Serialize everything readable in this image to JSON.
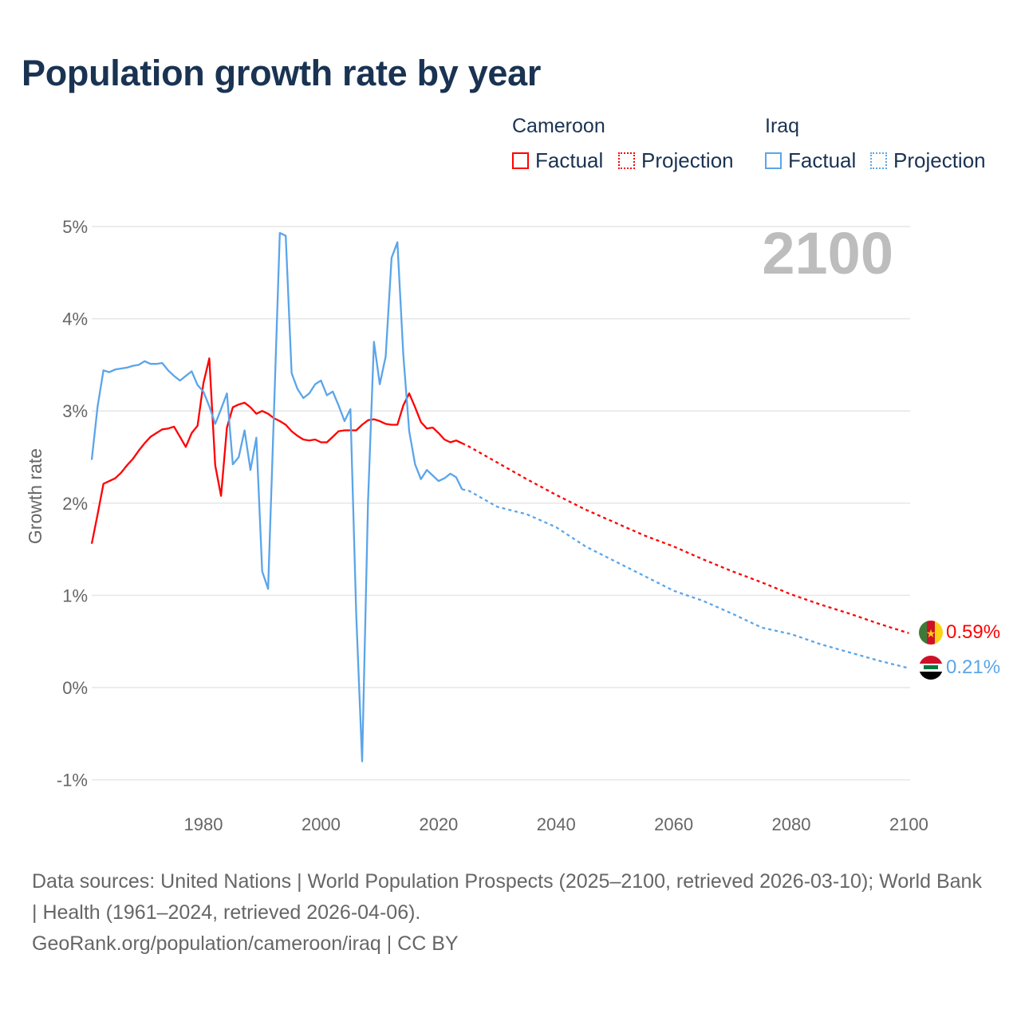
{
  "title": "Population growth rate by year",
  "legend": {
    "groups": [
      {
        "country": "Cameroon",
        "factual": "Factual",
        "projection": "Projection",
        "color": "#ff0000"
      },
      {
        "country": "Iraq",
        "factual": "Factual",
        "projection": "Projection",
        "color": "#5aa5ea"
      }
    ]
  },
  "year_indicator": "2100",
  "end_labels": {
    "cameroon": "0.59%",
    "iraq": "0.21%"
  },
  "flags": {
    "cameroon": "cameroon-flag-icon",
    "iraq": "iraq-flag-icon"
  },
  "chart_data": {
    "type": "line",
    "title": "Population growth rate by year",
    "xlabel": "",
    "ylabel": "Growth rate",
    "xlim": [
      1961,
      2100
    ],
    "ylim": [
      -1,
      5
    ],
    "x_ticks": [
      "1980",
      "2000",
      "2020",
      "2040",
      "2060",
      "2080",
      "2100"
    ],
    "x_tick_values": [
      1980,
      2000,
      2020,
      2040,
      2060,
      2080,
      2100
    ],
    "y_ticks": [
      "5%",
      "4%",
      "3%",
      "2%",
      "1%",
      "0%",
      "-1%"
    ],
    "y_tick_values": [
      5,
      4,
      3,
      2,
      1,
      0,
      -1
    ],
    "grid": true,
    "legend_position": "top-right",
    "series": [
      {
        "name": "Cameroon Factual",
        "color": "#ff0000",
        "style": "solid",
        "x": [
          1961,
          1962,
          1963,
          1964,
          1965,
          1966,
          1967,
          1968,
          1969,
          1970,
          1971,
          1972,
          1973,
          1974,
          1975,
          1976,
          1977,
          1978,
          1979,
          1980,
          1981,
          1982,
          1983,
          1984,
          1985,
          1986,
          1987,
          1988,
          1989,
          1990,
          1991,
          1992,
          1993,
          1994,
          1995,
          1996,
          1997,
          1998,
          1999,
          2000,
          2001,
          2002,
          2003,
          2004,
          2005,
          2006,
          2007,
          2008,
          2009,
          2010,
          2011,
          2012,
          2013,
          2014,
          2015,
          2016,
          2017,
          2018,
          2019,
          2020,
          2021,
          2022,
          2023,
          2024
        ],
        "values": [
          1.56,
          1.88,
          2.21,
          2.24,
          2.27,
          2.33,
          2.41,
          2.48,
          2.57,
          2.65,
          2.72,
          2.76,
          2.8,
          2.81,
          2.83,
          2.72,
          2.61,
          2.76,
          2.84,
          3.3,
          3.57,
          2.41,
          2.08,
          2.82,
          3.04,
          3.07,
          3.09,
          3.04,
          2.97,
          3.0,
          2.97,
          2.92,
          2.89,
          2.85,
          2.78,
          2.73,
          2.69,
          2.68,
          2.69,
          2.66,
          2.66,
          2.72,
          2.78,
          2.79,
          2.79,
          2.79,
          2.85,
          2.9,
          2.91,
          2.89,
          2.86,
          2.85,
          2.85,
          3.06,
          3.19,
          3.04,
          2.88,
          2.81,
          2.82,
          2.76,
          2.69,
          2.66,
          2.68,
          2.65
        ]
      },
      {
        "name": "Cameroon Projection",
        "color": "#ff0000",
        "style": "dotted",
        "x": [
          2024,
          2025,
          2030,
          2035,
          2040,
          2045,
          2050,
          2055,
          2060,
          2065,
          2070,
          2075,
          2080,
          2085,
          2090,
          2095,
          2100
        ],
        "values": [
          2.65,
          2.62,
          2.44,
          2.26,
          2.09,
          1.93,
          1.79,
          1.65,
          1.53,
          1.39,
          1.26,
          1.14,
          1.01,
          0.9,
          0.8,
          0.69,
          0.59
        ]
      },
      {
        "name": "Iraq Factual",
        "color": "#5aa5ea",
        "style": "solid",
        "x": [
          1961,
          1962,
          1963,
          1964,
          1965,
          1966,
          1967,
          1968,
          1969,
          1970,
          1971,
          1972,
          1973,
          1974,
          1975,
          1976,
          1977,
          1978,
          1979,
          1980,
          1981,
          1982,
          1983,
          1984,
          1985,
          1986,
          1987,
          1988,
          1989,
          1990,
          1991,
          1992,
          1993,
          1994,
          1995,
          1996,
          1997,
          1998,
          1999,
          2000,
          2001,
          2002,
          2003,
          2004,
          2005,
          2006,
          2007,
          2008,
          2009,
          2010,
          2011,
          2012,
          2013,
          2014,
          2015,
          2016,
          2017,
          2018,
          2019,
          2020,
          2021,
          2022,
          2023,
          2024
        ],
        "values": [
          2.47,
          3.05,
          3.44,
          3.42,
          3.45,
          3.46,
          3.47,
          3.49,
          3.5,
          3.54,
          3.51,
          3.51,
          3.52,
          3.44,
          3.38,
          3.33,
          3.38,
          3.43,
          3.28,
          3.21,
          3.05,
          2.86,
          3.02,
          3.19,
          2.42,
          2.5,
          2.79,
          2.36,
          2.71,
          1.26,
          1.07,
          3.0,
          4.93,
          4.9,
          3.41,
          3.24,
          3.14,
          3.19,
          3.29,
          3.33,
          3.17,
          3.21,
          3.06,
          2.89,
          3.02,
          0.79,
          -0.8,
          2.02,
          3.75,
          3.29,
          3.59,
          4.66,
          4.83,
          3.61,
          2.78,
          2.42,
          2.26,
          2.36,
          2.3,
          2.24,
          2.27,
          2.32,
          2.28,
          2.15
        ]
      },
      {
        "name": "Iraq Projection",
        "color": "#5aa5ea",
        "style": "dotted",
        "x": [
          2024,
          2025,
          2030,
          2035,
          2040,
          2045,
          2050,
          2055,
          2060,
          2065,
          2070,
          2075,
          2080,
          2085,
          2090,
          2095,
          2100
        ],
        "values": [
          2.15,
          2.14,
          1.96,
          1.88,
          1.74,
          1.53,
          1.37,
          1.21,
          1.05,
          0.94,
          0.8,
          0.65,
          0.58,
          0.47,
          0.38,
          0.29,
          0.21
        ]
      }
    ]
  },
  "footer": {
    "sources": "Data sources: United Nations | World Population Prospects (2025–2100, retrieved 2026-03-10); World Bank | Health (1961–2024, retrieved 2026-04-06).",
    "credit": "GeoRank.org/population/cameroon/iraq | CC BY"
  }
}
